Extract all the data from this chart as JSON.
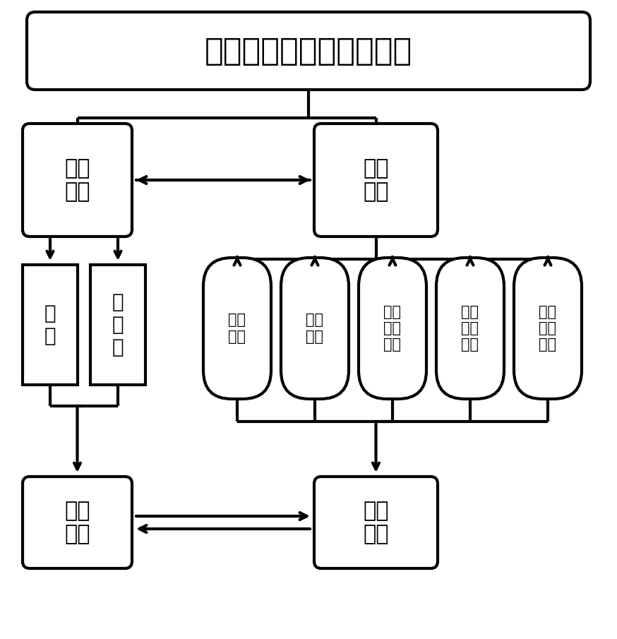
{
  "title": "腐蚀电位无损监检测模块",
  "software_system": "软件\n系统",
  "hardware_system": "硬件\n系统",
  "left_sub1": "界\n面",
  "left_sub2": "数\n据\n库",
  "hw_modules": [
    "显示\n模块",
    "电源\n模块",
    "远程\n通讯\n模块",
    "数据\n采集\n模块",
    "实时\n监测\n模块"
  ],
  "bottom_left": "人机\n交互",
  "bottom_right": "腐蚀\n监测",
  "bg_color": "#ffffff",
  "box_color": "#ffffff",
  "line_color": "#000000",
  "text_color": "#000000",
  "lw": 3.0,
  "fig_w": 8.74,
  "fig_h": 9.05,
  "dpi": 100
}
